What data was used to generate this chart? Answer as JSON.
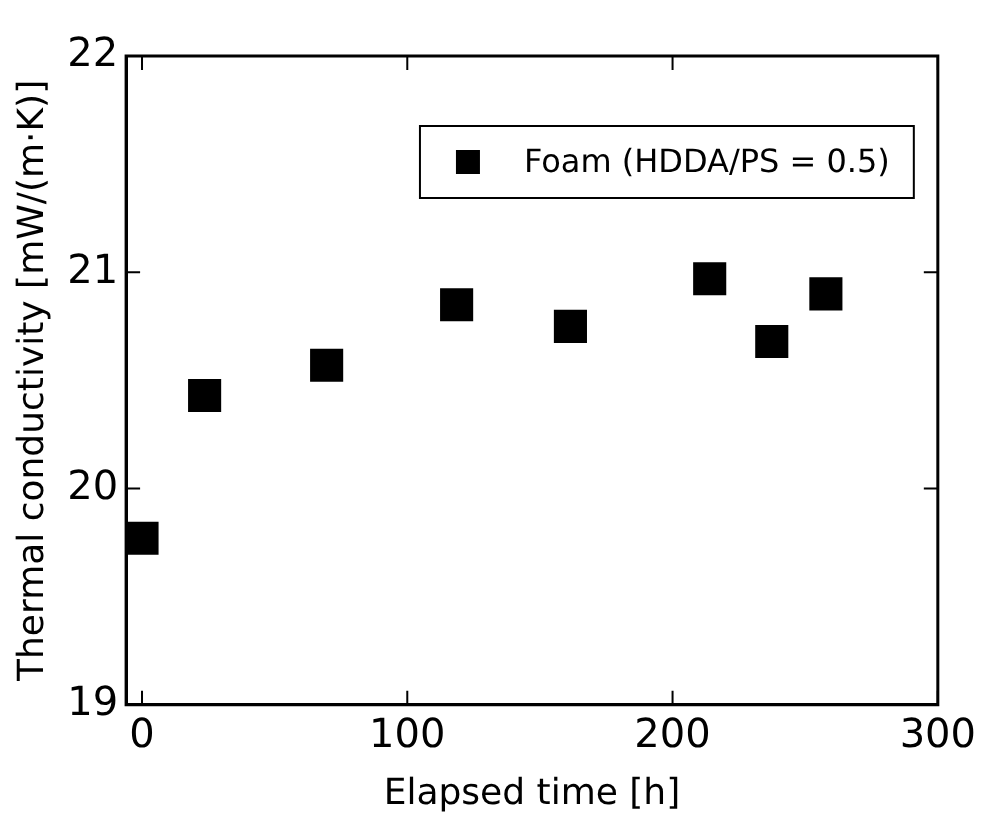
{
  "chart_data": {
    "type": "scatter",
    "xlabel": "Elapsed time [h]",
    "ylabel": "Thermal conductivity [mW/(m·K)]",
    "x": [
      0,
      23.6,
      69.6,
      118.6,
      161.5,
      214,
      237.4,
      257.8
    ],
    "series": [
      {
        "name": "Foam (HDDA/PS = 0.5)",
        "color": "#000000",
        "values": [
          19.77,
          20.43,
          20.57,
          20.85,
          20.75,
          20.97,
          20.68,
          20.9
        ]
      }
    ],
    "xlim": [
      -6,
      300
    ],
    "xticks": [
      0,
      100,
      200,
      300
    ],
    "ylim": [
      19,
      22
    ],
    "yticks": [
      19,
      20,
      21,
      22
    ],
    "marker": "square",
    "legend": "top right",
    "grid": false
  }
}
